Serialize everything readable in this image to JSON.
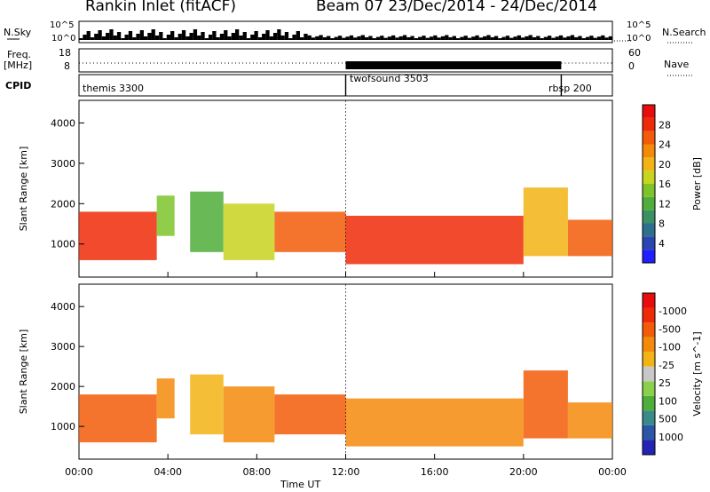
{
  "header": {
    "station": "Rankin Inlet (fitACF)",
    "beam_dates": "Beam 07  23/Dec/2014 - 24/Dec/2014"
  },
  "aux": {
    "nsky_label": "N.Sky",
    "nsearch_label": "N.Search",
    "freq_label_1": "Freq.",
    "freq_label_2": "[MHz]",
    "nave_label": "Nave",
    "cpid_label": "CPID",
    "noise_ticks": [
      "10^5",
      "10^0"
    ],
    "freq_ticks": [
      "18",
      "8"
    ],
    "nave_ticks": [
      "60",
      "0"
    ]
  },
  "chart_data": [
    {
      "type": "table",
      "title": "CPID",
      "segments": [
        {
          "label": "themis 3300",
          "start_hour": 0,
          "end_hour": 12
        },
        {
          "label": "twofsound 3503",
          "start_hour": 12,
          "end_hour": 21.7
        },
        {
          "label": "rbsp 200",
          "start_hour": 21.7,
          "end_hour": 24
        }
      ]
    },
    {
      "type": "heatmap",
      "ylabel": "Slant Range [km]",
      "xlabel": "Time UT",
      "xlim": [
        0,
        24
      ],
      "ylim": [
        180,
        4560
      ],
      "x_ticks": [
        "00:00",
        "04:00",
        "08:00",
        "12:00",
        "16:00",
        "20:00",
        "00:00"
      ],
      "y_ticks": [
        "1000",
        "2000",
        "3000",
        "4000"
      ],
      "colorbar": {
        "label": "Power [dB]",
        "ticks": [
          "4",
          "8",
          "12",
          "16",
          "20",
          "24",
          "28"
        ],
        "colors": [
          "#1f1fff",
          "#2946b0",
          "#2e6f8e",
          "#3a9164",
          "#4fae3a",
          "#7cc42a",
          "#c8d41e",
          "#f2b414",
          "#f58a0a",
          "#f25c08",
          "#ee2a08",
          "#e80c0c"
        ]
      },
      "echo_regions": [
        {
          "t0": 0.0,
          "t1": 3.5,
          "r0": 600,
          "r1": 1800,
          "level": 0.9
        },
        {
          "t0": 3.5,
          "t1": 4.3,
          "r0": 1200,
          "r1": 2200,
          "level": 0.45
        },
        {
          "t0": 5.0,
          "t1": 6.5,
          "r0": 800,
          "r1": 2300,
          "level": 0.35
        },
        {
          "t0": 6.5,
          "t1": 8.8,
          "r0": 600,
          "r1": 2000,
          "level": 0.5
        },
        {
          "t0": 8.8,
          "t1": 12.0,
          "r0": 800,
          "r1": 1800,
          "level": 0.85
        },
        {
          "t0": 12.0,
          "t1": 20.0,
          "r0": 500,
          "r1": 1700,
          "level": 0.9
        },
        {
          "t0": 20.0,
          "t1": 22.0,
          "r0": 700,
          "r1": 2400,
          "level": 0.6
        },
        {
          "t0": 22.0,
          "t1": 24.0,
          "r0": 700,
          "r1": 1600,
          "level": 0.85
        }
      ]
    },
    {
      "type": "heatmap",
      "ylabel": "Slant Range [km]",
      "xlabel": "Time UT",
      "xlim": [
        0,
        24
      ],
      "ylim": [
        180,
        4560
      ],
      "x_ticks": [
        "00:00",
        "04:00",
        "08:00",
        "12:00",
        "16:00",
        "20:00",
        "00:00"
      ],
      "y_ticks": [
        "1000",
        "2000",
        "3000",
        "4000"
      ],
      "colorbar": {
        "label": "Velocity [m s^-1]",
        "ticks": [
          "1000",
          "500",
          "100",
          "25",
          "-25",
          "-100",
          "-500",
          "-1000"
        ],
        "colors": [
          "#2323b4",
          "#2c56a8",
          "#3a8a8a",
          "#4fae3a",
          "#8ad04a",
          "#c8c8c8",
          "#f2b414",
          "#f58a0a",
          "#f25c08",
          "#ee2a08",
          "#e80c0c"
        ]
      },
      "echo_regions": [
        {
          "t0": 0.0,
          "t1": 3.5,
          "r0": 600,
          "r1": 1800,
          "level": 0.75
        },
        {
          "t0": 3.5,
          "t1": 4.3,
          "r0": 1200,
          "r1": 2200,
          "level": 0.7
        },
        {
          "t0": 5.0,
          "t1": 6.5,
          "r0": 800,
          "r1": 2300,
          "level": 0.6
        },
        {
          "t0": 6.5,
          "t1": 8.8,
          "r0": 600,
          "r1": 2000,
          "level": 0.7
        },
        {
          "t0": 8.8,
          "t1": 12.0,
          "r0": 800,
          "r1": 1800,
          "level": 0.75
        },
        {
          "t0": 12.0,
          "t1": 20.0,
          "r0": 500,
          "r1": 1700,
          "level": 0.65
        },
        {
          "t0": 20.0,
          "t1": 22.0,
          "r0": 700,
          "r1": 2400,
          "level": 0.8
        },
        {
          "t0": 22.0,
          "t1": 24.0,
          "r0": 700,
          "r1": 1600,
          "level": 0.7
        }
      ]
    }
  ]
}
